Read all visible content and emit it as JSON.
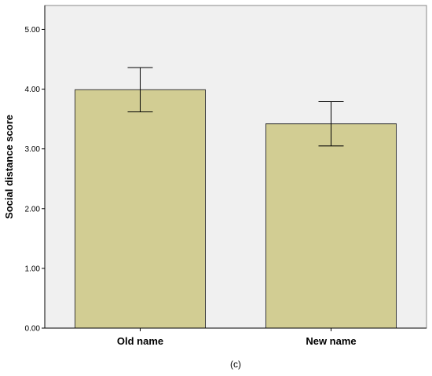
{
  "chart_data": {
    "type": "bar",
    "categories": [
      "Old name",
      "New name"
    ],
    "values": [
      3.99,
      3.42
    ],
    "error_bars": [
      {
        "low": 3.62,
        "high": 4.36
      },
      {
        "low": 3.05,
        "high": 3.79
      }
    ],
    "ylabel": "Social distance score",
    "xlabel": "",
    "ylim": [
      0,
      5.4
    ],
    "yticks": [
      "0.00",
      "1.00",
      "2.00",
      "3.00",
      "4.00",
      "5.00"
    ],
    "ytick_values": [
      0,
      1,
      2,
      3,
      4,
      5
    ],
    "grid": false,
    "colors": {
      "bar_fill": "#d2cd93",
      "bar_stroke": "#3a3a3a",
      "plot_bg": "#f0f0f0",
      "axis": "#000000"
    }
  },
  "caption": "(c)"
}
